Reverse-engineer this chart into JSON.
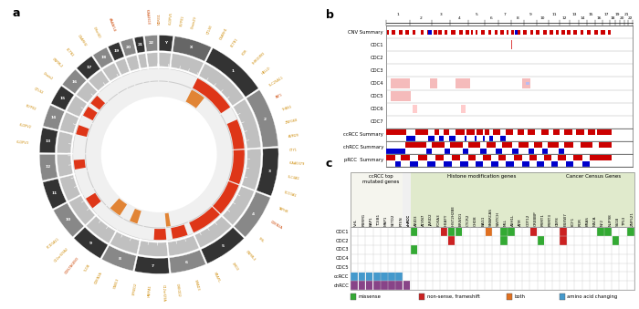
{
  "bg_color": "#ffffff",
  "missense_color": "#33aa33",
  "nonsense_color": "#cc2222",
  "both_color": "#e07020",
  "amino_color": "#4499cc",
  "purple_color": "#884488",
  "red": "#cc0000",
  "blue": "#0000cc",
  "pink_light": "#f5bbbb",
  "blue_light": "#bbbbff",
  "chr_labels": [
    "Y",
    "X",
    "1",
    "2",
    "3",
    "4",
    "5",
    "6",
    "7",
    "8",
    "9",
    "10",
    "11",
    "12",
    "13",
    "14",
    "15",
    "16",
    "17",
    "18",
    "19",
    "20",
    "21",
    "22"
  ],
  "chr_sizes_mb": [
    57,
    155,
    249,
    243,
    198,
    191,
    181,
    146,
    141,
    135,
    135,
    133,
    115,
    107,
    102,
    90,
    83,
    81,
    78,
    63,
    48,
    51,
    36,
    51
  ],
  "chr_colors_dark": "#2e2e2e",
  "chr_colors_light": "#888888",
  "genome_chr_widths": [
    249,
    243,
    198,
    191,
    181,
    146,
    141,
    135,
    135,
    133,
    115,
    107,
    102,
    90,
    83,
    81,
    78,
    63,
    48,
    51,
    36,
    51
  ],
  "track_labels": [
    "CNV Summary",
    "CDC1",
    "CDC2",
    "CDC3",
    "CDC4",
    "CDC5",
    "CDC6",
    "CDC7",
    "ccRCC Summary",
    "chRCC Summary",
    "pRCC  Summary"
  ],
  "genes_ccRCC": [
    "VHL",
    "PBRM1",
    "BAP1",
    "TCEB1",
    "MAP1",
    "SETD2",
    "PTEN"
  ],
  "genes_chrRCC": [
    "chRCC"
  ],
  "genes_histone": [
    "ARID3",
    "ATXN7",
    "JARID2",
    "FOXA3",
    "H2AFY",
    "HIST2H2BE",
    "BRWD1",
    "CTCR2",
    "CHD8",
    "BAG1",
    "SMARCAS",
    "SWITCH",
    "MLL",
    "ASH1L",
    "ATM",
    "CDY12",
    "CREBBP",
    "PRMT1",
    "PRMT3"
  ],
  "genes_cancer": [
    "CBF8",
    "FBXW7",
    "KCF1",
    "ROR",
    "KRAS",
    "NACA",
    "NF2",
    "NUP98",
    "SS18",
    "TP53",
    "ZNF521"
  ],
  "row_labels_c": [
    "CDC1",
    "CDC2",
    "CDC3",
    "CDC4",
    "CDC5",
    "ccRCC",
    "chRCC"
  ]
}
